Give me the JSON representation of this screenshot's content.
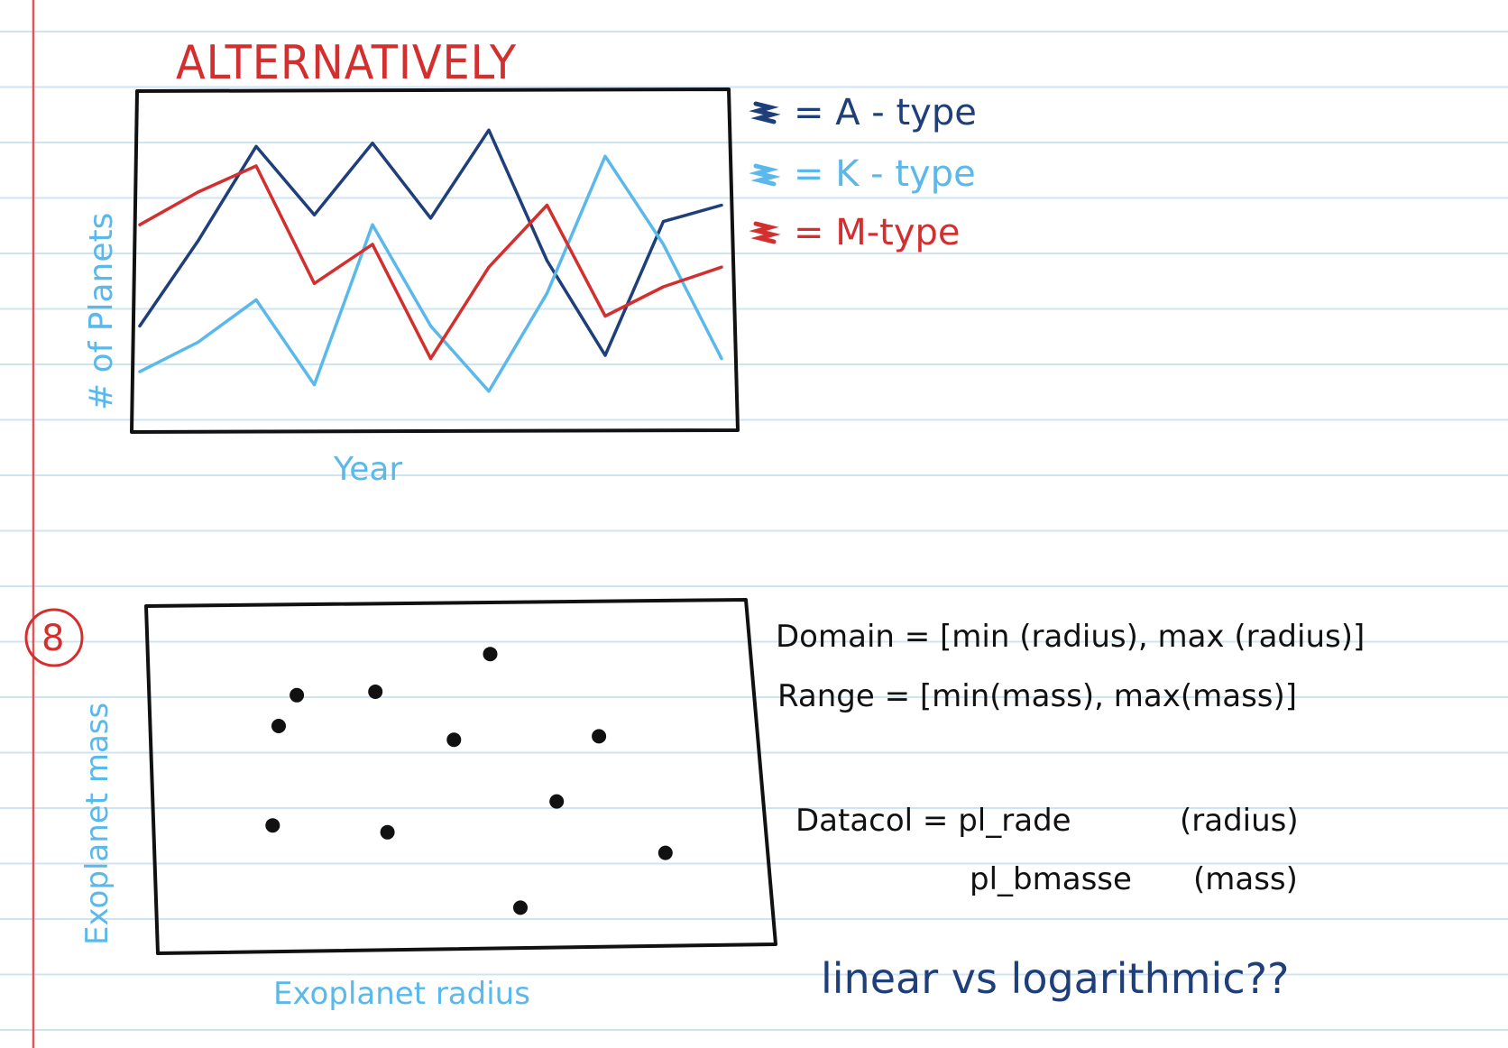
{
  "colors": {
    "rule_line": "#cfe4f3",
    "margin_line": "#e05555",
    "a_type": "#1e3f7a",
    "k_type": "#5bb8ea",
    "m_type": "#d42f2f",
    "ink": "#111111"
  },
  "sketch1": {
    "title": "ALTERNATIVELY",
    "legend": [
      "= A - type",
      "= K - type",
      "= M-type"
    ],
    "xlabel": "Year",
    "ylabel": "# of Planets"
  },
  "sketch2": {
    "number": "8",
    "xlabel": "Exoplanet radius",
    "ylabel": "Exoplanet mass",
    "notes": {
      "domain": "Domain = [min (radius), max (radius)]",
      "range": "Range = [min(mass), max(mass)]",
      "datacol_label": "Datacol = pl_rade",
      "datacol_radius_note": "(radius)",
      "datacol_mass": "pl_bmasse",
      "datacol_mass_note": "(mass)"
    },
    "question": "linear vs logarithmic??"
  },
  "chart_data": [
    {
      "type": "line",
      "title": "ALTERNATIVELY",
      "xlabel": "Year",
      "ylabel": "# of Planets",
      "x": [
        0,
        1,
        2,
        3,
        4,
        5,
        6,
        7,
        8,
        9,
        10
      ],
      "series": [
        {
          "name": "A-type",
          "values": [
            0.3,
            0.56,
            0.85,
            0.64,
            0.86,
            0.63,
            0.9,
            0.5,
            0.21,
            0.62,
            0.67
          ]
        },
        {
          "name": "K-type",
          "values": [
            0.16,
            0.25,
            0.38,
            0.12,
            0.61,
            0.3,
            0.1,
            0.4,
            0.82,
            0.55,
            0.2
          ]
        },
        {
          "name": "M-type",
          "values": [
            0.61,
            0.71,
            0.79,
            0.43,
            0.55,
            0.2,
            0.48,
            0.67,
            0.33,
            0.42,
            0.48
          ]
        }
      ],
      "legend": "right"
    },
    {
      "type": "scatter",
      "xlabel": "Exoplanet radius",
      "ylabel": "Exoplanet mass",
      "x": [
        0.2,
        0.36,
        0.55,
        0.49,
        0.19,
        0.38,
        0.73,
        0.66,
        0.6,
        0.84,
        0.23
      ],
      "y": [
        0.65,
        0.75,
        0.86,
        0.61,
        0.36,
        0.34,
        0.62,
        0.43,
        0.12,
        0.28,
        0.74
      ]
    }
  ]
}
